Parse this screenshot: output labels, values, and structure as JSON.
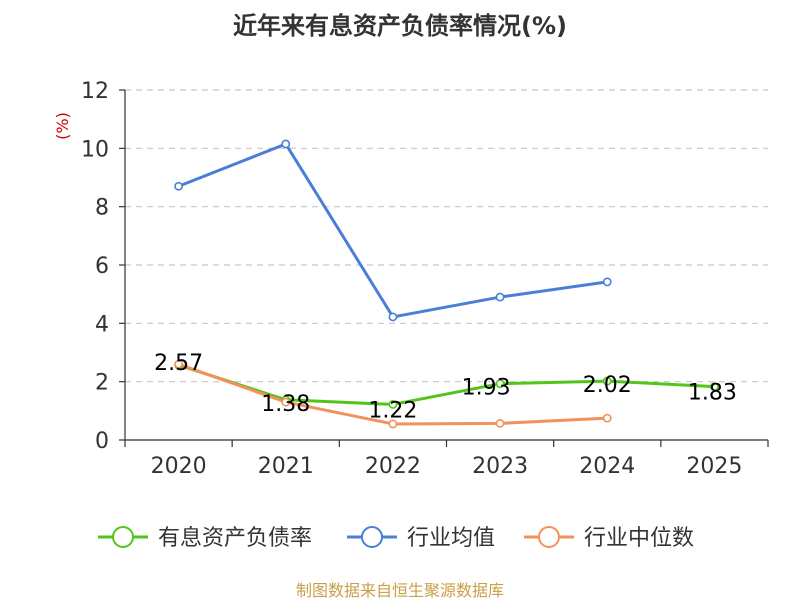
{
  "colors": {
    "debt_ratio": "#52c41a",
    "industry_avg": "#4a7fd8",
    "industry_median": "#f4915a",
    "ylabel": "#cc0000",
    "footer": "#c8a048",
    "grid": "#c8c8c8",
    "axis": "#333333"
  },
  "chart_data": {
    "type": "line",
    "title": "近年来有息资产负债率情况(%)",
    "ylabel": "(%)",
    "categories": [
      "2020",
      "2021",
      "2022",
      "2023",
      "2024",
      "2025"
    ],
    "ylim": [
      0,
      12
    ],
    "yticks": [
      0,
      2,
      4,
      6,
      8,
      10,
      12
    ],
    "grid": true,
    "legend_position": "bottom",
    "series": [
      {
        "key": "debt_ratio",
        "name": "有息资产负债率",
        "values": [
          2.57,
          1.38,
          1.22,
          1.93,
          2.02,
          1.83
        ],
        "labels": [
          "2.57",
          "1.38",
          "1.22",
          "1.93",
          "2.02",
          "1.83"
        ]
      },
      {
        "key": "industry_avg",
        "name": "行业均值",
        "values": [
          8.7,
          10.15,
          4.22,
          4.9,
          5.42,
          null
        ]
      },
      {
        "key": "industry_median",
        "name": "行业中位数",
        "values": [
          2.6,
          1.3,
          0.55,
          0.57,
          0.75,
          null
        ]
      }
    ]
  },
  "footer": "制图数据来自恒生聚源数据库"
}
